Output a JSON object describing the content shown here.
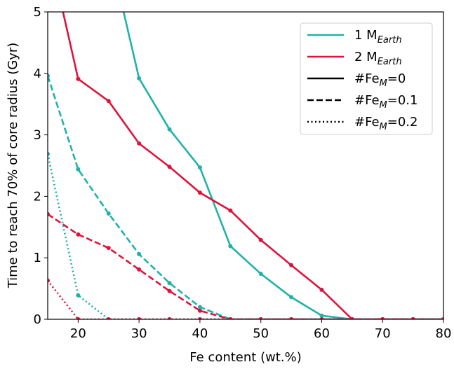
{
  "chart_data": {
    "type": "line",
    "xlabel": "Fe content (wt.%)",
    "ylabel": "Time to reach 70% of core radius (Gyr)",
    "xlim": [
      15,
      80
    ],
    "ylim": [
      0,
      5
    ],
    "xticks": [
      20,
      30,
      40,
      50,
      60,
      70,
      80
    ],
    "yticks": [
      0,
      1,
      2,
      3,
      4,
      5
    ],
    "x": [
      15,
      20,
      25,
      30,
      35,
      40,
      45,
      50,
      55,
      60,
      65,
      70,
      75,
      80
    ],
    "series": [
      {
        "color": "#20b2aa",
        "linestyle": "solid",
        "values": [
          null,
          null,
          6.05,
          3.92,
          3.09,
          2.47,
          1.19,
          0.74,
          0.36,
          0.06,
          0,
          0,
          0,
          0
        ]
      },
      {
        "color": "#dc143c",
        "linestyle": "solid",
        "values": [
          6.1,
          3.91,
          3.55,
          2.86,
          2.48,
          2.06,
          1.77,
          1.29,
          0.88,
          0.48,
          0,
          0,
          0,
          0
        ]
      },
      {
        "color": "#20b2aa",
        "linestyle": "dashed",
        "values": [
          3.96,
          2.44,
          1.72,
          1.06,
          0.59,
          0.2,
          0,
          0,
          0,
          0,
          0,
          0,
          0,
          0
        ]
      },
      {
        "color": "#dc143c",
        "linestyle": "dashed",
        "values": [
          1.71,
          1.38,
          1.16,
          0.81,
          0.46,
          0.14,
          0,
          0,
          0,
          0,
          0,
          0,
          0,
          0
        ]
      },
      {
        "color": "#20b2aa",
        "linestyle": "dotted",
        "values": [
          2.69,
          0.39,
          0,
          0,
          0,
          0,
          0,
          0,
          0,
          0,
          0,
          0,
          0,
          0
        ]
      },
      {
        "color": "#dc143c",
        "linestyle": "dotted",
        "values": [
          0.63,
          0,
          0,
          0,
          0,
          0,
          0,
          0,
          0,
          0,
          0,
          0,
          0,
          0
        ]
      }
    ],
    "legend": [
      {
        "text": "1 M",
        "sub": "Earth",
        "color": "#20b2aa",
        "linestyle": "solid"
      },
      {
        "text": "2 M",
        "sub": "Earth",
        "color": "#dc143c",
        "linestyle": "solid"
      },
      {
        "text": "#Fe",
        "sub": "M",
        "suffix": "=0",
        "color": "#000000",
        "linestyle": "solid"
      },
      {
        "text": "#Fe",
        "sub": "M",
        "suffix": "=0.1",
        "color": "#000000",
        "linestyle": "dashed"
      },
      {
        "text": "#Fe",
        "sub": "M",
        "suffix": "=0.2",
        "color": "#000000",
        "linestyle": "dotted"
      }
    ],
    "legend_position": "upper right"
  }
}
